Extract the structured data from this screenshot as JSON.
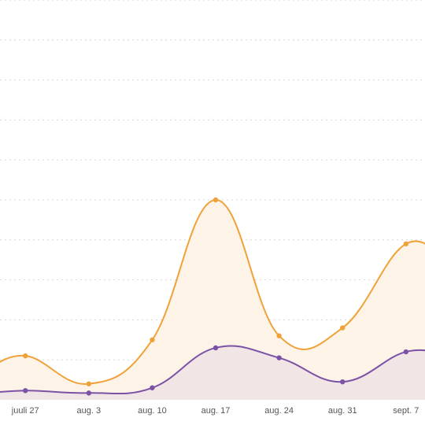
{
  "chart_data": {
    "type": "area",
    "title": "",
    "xlabel": "",
    "ylabel": "",
    "x_index_range": [
      -0.4,
      6.3
    ],
    "ylim": [
      0,
      100
    ],
    "grid": true,
    "legend": "none",
    "categories": [
      "juuli 27",
      "aug. 3",
      "aug. 10",
      "aug. 17",
      "aug. 24",
      "aug. 31",
      "sept. 7"
    ],
    "series": [
      {
        "name": "",
        "color": "#f0a23a",
        "fill": "#fdf3e7",
        "points": [
          {
            "x": -0.7,
            "y": 6.5
          },
          {
            "x": 0,
            "y": 11
          },
          {
            "x": 1,
            "y": 4
          },
          {
            "x": 2,
            "y": 15
          },
          {
            "x": 3,
            "y": 50
          },
          {
            "x": 4,
            "y": 16
          },
          {
            "x": 5,
            "y": 18
          },
          {
            "x": 6,
            "y": 39
          },
          {
            "x": 6.7,
            "y": 33
          }
        ]
      },
      {
        "name": "",
        "color": "#7b52a5",
        "fill": "#eee3e4",
        "points": [
          {
            "x": -0.7,
            "y": 1.5
          },
          {
            "x": 0,
            "y": 2.3
          },
          {
            "x": 1,
            "y": 1.7
          },
          {
            "x": 2,
            "y": 3
          },
          {
            "x": 3,
            "y": 13
          },
          {
            "x": 4,
            "y": 10.5
          },
          {
            "x": 5,
            "y": 4.5
          },
          {
            "x": 6,
            "y": 12
          },
          {
            "x": 6.7,
            "y": 11
          }
        ]
      }
    ]
  }
}
